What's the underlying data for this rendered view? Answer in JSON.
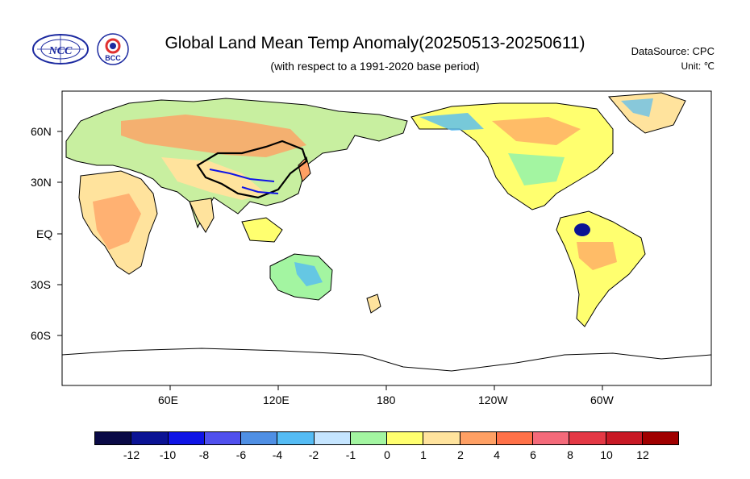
{
  "header": {
    "title": "Global Land Mean Temp Anomaly(20250513-20250611)",
    "subtitle": "(with respect to a 1991-2020 base period)",
    "datasource": "DataSource:  CPC",
    "unit": "Unit:  ℃"
  },
  "logos": [
    {
      "name": "NCC",
      "text": "NCC",
      "color": "#1c2aa0"
    },
    {
      "name": "BCC",
      "text": "BCC",
      "color": "#1c2aa0"
    }
  ],
  "map": {
    "lat_labels": [
      "60N",
      "30N",
      "EQ",
      "30S",
      "60S"
    ],
    "lon_labels": [
      "60E",
      "120E",
      "180",
      "120W",
      "60W"
    ],
    "ocean_color": "#ffffff"
  },
  "colorbar": {
    "colors": [
      "#0a0a46",
      "#0b1394",
      "#0f14e6",
      "#5050ee",
      "#4f8fe4",
      "#55bcf4",
      "#c5e5ff",
      "#a3f5a1",
      "#ffff6f",
      "#ffe39d",
      "#ffa064",
      "#ff7148",
      "#f46a7a",
      "#e43845",
      "#c81925",
      "#a00000"
    ],
    "tick_labels": [
      "-12",
      "-10",
      "-8",
      "-6",
      "-4",
      "-2",
      "-1",
      "0",
      "1",
      "2",
      "4",
      "6",
      "8",
      "10",
      "12"
    ]
  }
}
